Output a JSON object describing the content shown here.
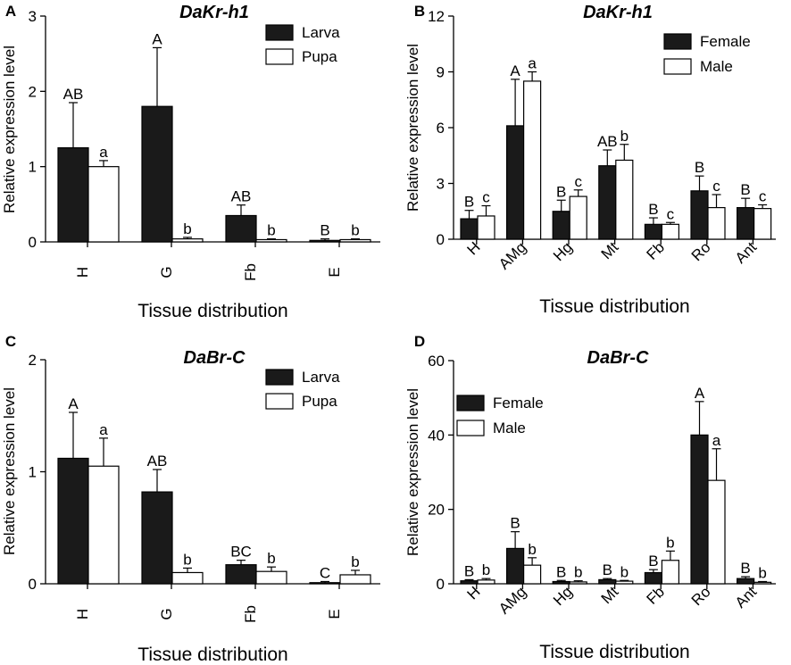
{
  "chart_data": [
    {
      "panel": "A",
      "type": "bar",
      "title": "DaKr-h1",
      "xlabel": "Tissue distribution",
      "ylabel": "Relative expression level",
      "ylim": [
        0,
        3
      ],
      "yticks": [
        0,
        1,
        2,
        3
      ],
      "legend_position": "top-right",
      "categories": [
        "H",
        "G",
        "Fb",
        "E"
      ],
      "series": [
        {
          "name": "Larva",
          "fill": "#1a1a1a",
          "values": [
            1.25,
            1.8,
            0.35,
            0.02
          ],
          "errors": [
            0.6,
            0.78,
            0.14,
            0.02
          ],
          "letters": [
            "AB",
            "A",
            "AB",
            "B"
          ]
        },
        {
          "name": "Pupa",
          "fill": "#ffffff",
          "values": [
            1.0,
            0.04,
            0.03,
            0.03
          ],
          "errors": [
            0.08,
            0.02,
            0.01,
            0.01
          ],
          "letters": [
            "a",
            "b",
            "b",
            "b"
          ]
        }
      ]
    },
    {
      "panel": "B",
      "type": "bar",
      "title": "DaKr-h1",
      "xlabel": "Tissue distribution",
      "ylabel": "Relative expression level",
      "ylim": [
        0,
        12
      ],
      "yticks": [
        0,
        3,
        6,
        9,
        12
      ],
      "legend_position": "top-right",
      "categories": [
        "H",
        "AMg",
        "Hg",
        "Mt",
        "Fb",
        "Ro",
        "Ant"
      ],
      "series": [
        {
          "name": "Female",
          "fill": "#1a1a1a",
          "values": [
            1.1,
            6.1,
            1.5,
            3.95,
            0.8,
            2.6,
            1.7
          ],
          "errors": [
            0.45,
            2.5,
            0.6,
            0.85,
            0.35,
            0.8,
            0.5
          ],
          "letters": [
            "B",
            "A",
            "B",
            "AB",
            "B",
            "B",
            "B"
          ]
        },
        {
          "name": "Male",
          "fill": "#ffffff",
          "values": [
            1.25,
            8.5,
            2.3,
            4.25,
            0.8,
            1.7,
            1.65
          ],
          "errors": [
            0.55,
            0.5,
            0.35,
            0.85,
            0.1,
            0.7,
            0.2
          ],
          "letters": [
            "c",
            "a",
            "c",
            "b",
            "c",
            "c",
            "c"
          ]
        }
      ]
    },
    {
      "panel": "C",
      "type": "bar",
      "title": "DaBr-C",
      "xlabel": "Tissue distribution",
      "ylabel": "Relative expression level",
      "ylim": [
        0,
        2
      ],
      "yticks": [
        0,
        1,
        2
      ],
      "legend_position": "top-right",
      "categories": [
        "H",
        "G",
        "Fb",
        "E"
      ],
      "series": [
        {
          "name": "Larva",
          "fill": "#1a1a1a",
          "values": [
            1.12,
            0.82,
            0.17,
            0.01
          ],
          "errors": [
            0.41,
            0.2,
            0.04,
            0.01
          ],
          "letters": [
            "A",
            "AB",
            "BC",
            "C"
          ]
        },
        {
          "name": "Pupa",
          "fill": "#ffffff",
          "values": [
            1.05,
            0.1,
            0.11,
            0.08
          ],
          "errors": [
            0.25,
            0.04,
            0.04,
            0.04
          ],
          "letters": [
            "a",
            "b",
            "b",
            "b"
          ]
        }
      ]
    },
    {
      "panel": "D",
      "type": "bar",
      "title": "DaBr-C",
      "xlabel": "Tissue distribution",
      "ylabel": "Relative expression level",
      "ylim": [
        0,
        60
      ],
      "yticks": [
        0,
        20,
        40,
        60
      ],
      "legend_position": "top-left",
      "categories": [
        "H",
        "AMg",
        "Hg",
        "Mt",
        "Fb",
        "Ro",
        "Ant"
      ],
      "series": [
        {
          "name": "Female",
          "fill": "#1a1a1a",
          "values": [
            0.8,
            9.5,
            0.6,
            1.1,
            3.0,
            40,
            1.4
          ],
          "errors": [
            0.3,
            4.5,
            0.3,
            0.3,
            0.8,
            9,
            0.5
          ],
          "letters": [
            "B",
            "B",
            "B",
            "B",
            "B",
            "A",
            "B"
          ]
        },
        {
          "name": "Male",
          "fill": "#ffffff",
          "values": [
            1.0,
            5.0,
            0.5,
            0.7,
            6.3,
            27.8,
            0.4
          ],
          "errors": [
            0.4,
            2.0,
            0.3,
            0.2,
            2.5,
            8.5,
            0.2
          ],
          "letters": [
            "b",
            "b",
            "b",
            "b",
            "b",
            "a",
            "b"
          ]
        }
      ]
    }
  ]
}
